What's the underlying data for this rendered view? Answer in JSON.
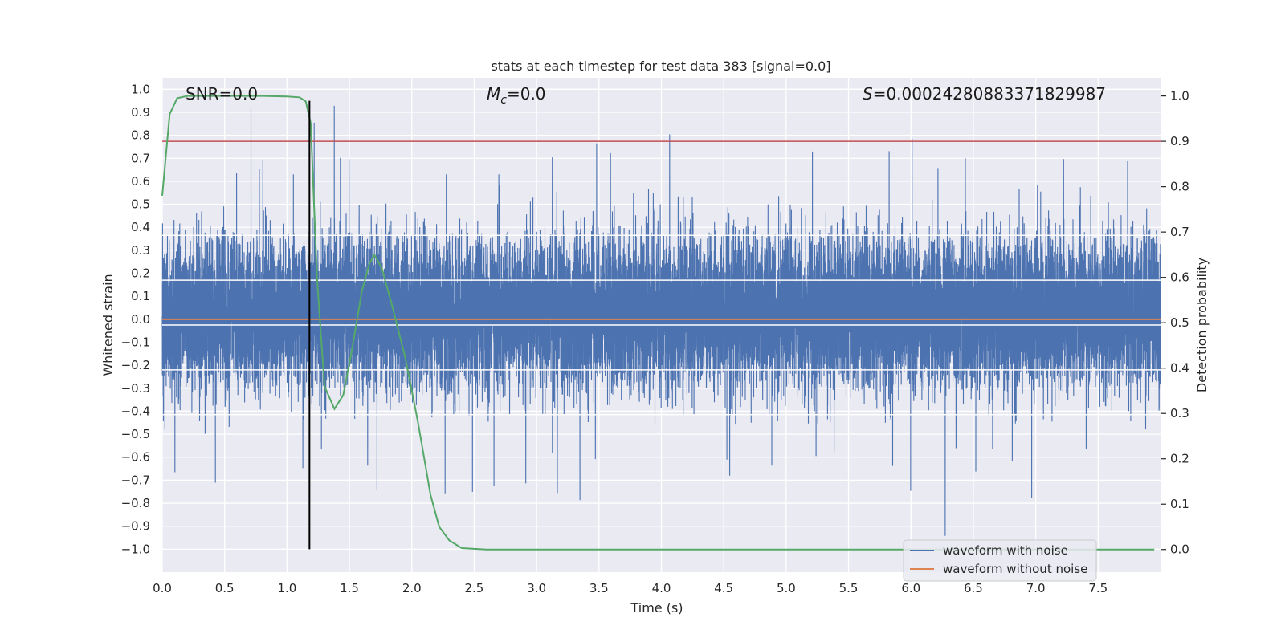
{
  "chart_data": {
    "type": "line",
    "title": "stats at each timestep for test data 383 [signal=0.0]",
    "xlabel": "Time (s)",
    "ylabel": "Whitened strain",
    "y2label": "Detection probability",
    "xlim": [
      0,
      8
    ],
    "ylim": [
      -1.1,
      1.05
    ],
    "y2lim": [
      -0.05,
      1.04
    ],
    "xticks": [
      0.0,
      0.5,
      1.0,
      1.5,
      2.0,
      2.5,
      3.0,
      3.5,
      4.0,
      4.5,
      5.0,
      5.5,
      6.0,
      6.5,
      7.0,
      7.5
    ],
    "yticks": [
      1.0,
      0.9,
      0.8,
      0.7,
      0.6,
      0.5,
      0.4,
      0.3,
      0.2,
      0.1,
      0.0,
      -0.1,
      -0.2,
      -0.3,
      -0.4,
      -0.5,
      -0.6,
      -0.7,
      -0.8,
      -0.9,
      -1.0
    ],
    "y2ticks": [
      1.0,
      0.9,
      0.8,
      0.7,
      0.6,
      0.5,
      0.4,
      0.3,
      0.2,
      0.1,
      0.0
    ],
    "grid": true,
    "legend_position": "bottom-right",
    "annotations": {
      "snr": "SNR=0.0",
      "mc_symbol": "M",
      "mc_sub": "c",
      "mc_value": "=0.0",
      "s_symbol": "S",
      "s_value": "=0.00024280883371829987"
    },
    "series": [
      {
        "name": "waveform with noise",
        "axis": "left",
        "color": "#4c72b0",
        "sample_rate": 2048,
        "noise_band": [
          -0.4,
          0.45
        ],
        "peak_range": [
          -0.99,
          0.95
        ]
      },
      {
        "name": "waveform without noise",
        "axis": "left",
        "color": "#dd8452",
        "constant": 0.0
      },
      {
        "name": "detection probability",
        "axis": "right",
        "color": "#55a868",
        "x": [
          0.0,
          0.06,
          0.12,
          0.2,
          0.3,
          0.45,
          0.6,
          0.8,
          1.0,
          1.1,
          1.15,
          1.19,
          1.24,
          1.3,
          1.38,
          1.45,
          1.52,
          1.6,
          1.66,
          1.7,
          1.76,
          1.84,
          1.95,
          2.05,
          2.15,
          2.22,
          2.3,
          2.4,
          2.6,
          3.0,
          4.0,
          5.0,
          6.0,
          7.0,
          7.95
        ],
        "y": [
          0.78,
          0.96,
          0.995,
          1.0,
          1.0,
          1.0,
          1.0,
          1.0,
          0.999,
          0.997,
          0.988,
          0.94,
          0.6,
          0.36,
          0.31,
          0.34,
          0.44,
          0.57,
          0.63,
          0.65,
          0.62,
          0.54,
          0.42,
          0.28,
          0.12,
          0.05,
          0.02,
          0.003,
          0.0,
          0.0,
          0.0,
          0.0,
          0.0,
          0.0,
          0.0
        ]
      }
    ],
    "hlines": [
      {
        "axis": "right",
        "y": 0.9,
        "color": "#c44e52"
      },
      {
        "axis": "left",
        "y": 0.365,
        "color": "#ffffff"
      },
      {
        "axis": "left",
        "y": 0.17,
        "color": "#ffffff"
      },
      {
        "axis": "left",
        "y": -0.025,
        "color": "#ffffff"
      },
      {
        "axis": "left",
        "y": -0.22,
        "color": "#ffffff"
      },
      {
        "axis": "left",
        "y": -0.415,
        "color": "#ffffff"
      }
    ],
    "vline": {
      "x": 1.18,
      "y_range": [
        -1.0,
        0.95
      ],
      "color": "#000000"
    }
  }
}
